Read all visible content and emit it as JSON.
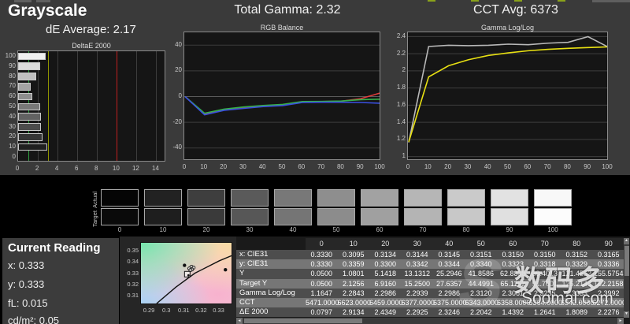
{
  "header": {
    "title": "Grayscale",
    "de_average": "dE Average: 2.17",
    "total_gamma": "Total Gamma: 2.32",
    "cct_avg": "CCT Avg: 6373"
  },
  "chart_data": [
    {
      "type": "bar",
      "title": "DeltaE 2000",
      "orientation": "horizontal",
      "categories": [
        "100",
        "90",
        "80",
        "70",
        "60",
        "50",
        "40",
        "30",
        "20",
        "10",
        "0"
      ],
      "values": [
        2.81,
        2.2276,
        1.8089,
        1.2641,
        1.4392,
        2.2042,
        2.3246,
        2.2925,
        2.4349,
        2.9134,
        0.0797
      ],
      "bar_colors": [
        "#f0f0f0",
        "#dcdcdc",
        "#c0c0c0",
        "#a4a4a4",
        "#8e8e8e",
        "#787878",
        "#626262",
        "#4c4c4c",
        "#363636",
        "#202020",
        "#0a0a0a"
      ],
      "xlim": [
        0,
        15
      ],
      "xticks": [
        0,
        2,
        4,
        6,
        8,
        10,
        12,
        14
      ],
      "reference_lines": [
        {
          "x": 1,
          "color": "#2f9e3f",
          "name": "green-limit"
        },
        {
          "x": 3,
          "color": "#8f9400",
          "name": "yellow-limit"
        },
        {
          "x": 10,
          "color": "#c02020",
          "name": "red-limit"
        }
      ],
      "grid": true,
      "legend": "none"
    },
    {
      "type": "line",
      "title": "RGB Balance",
      "x": [
        0,
        10,
        20,
        30,
        40,
        50,
        60,
        70,
        80,
        90,
        100
      ],
      "xticks": [
        0,
        10,
        20,
        30,
        40,
        50,
        60,
        70,
        80,
        90,
        100
      ],
      "ylim": [
        -50,
        50
      ],
      "yticks": [
        40,
        20,
        0,
        -20,
        -40
      ],
      "series": [
        {
          "name": "red",
          "color": "#e03c3c",
          "values": [
            0,
            -13.6,
            -10.2,
            -8.6,
            -7.2,
            -6.4,
            -4.2,
            -3.9,
            -3.6,
            -1.6,
            2.8
          ]
        },
        {
          "name": "green",
          "color": "#35b04a",
          "values": [
            0,
            -13.0,
            -9.8,
            -8.1,
            -6.9,
            -6.1,
            -3.9,
            -3.8,
            -3.5,
            -2.4,
            -2.0
          ]
        },
        {
          "name": "blue",
          "color": "#3a50e0",
          "values": [
            0,
            -14.2,
            -10.7,
            -9.2,
            -7.8,
            -7.0,
            -4.6,
            -4.4,
            -4.4,
            -4.6,
            -5.2
          ]
        }
      ],
      "grid": true,
      "legend": "none"
    },
    {
      "type": "line",
      "title": "Gamma Log/Log",
      "x": [
        0,
        10,
        20,
        30,
        40,
        50,
        60,
        70,
        80,
        90,
        100
      ],
      "xticks": [
        0,
        10,
        20,
        30,
        40,
        50,
        60,
        70,
        80,
        90,
        100
      ],
      "ylim": [
        0.95,
        2.45
      ],
      "yticks": [
        2.4,
        2.2,
        2,
        1.8,
        1.6,
        1.4,
        1.2,
        1
      ],
      "series": [
        {
          "name": "measured",
          "color": "#b8b8b8",
          "values": [
            1.1647,
            2.2843,
            2.2986,
            2.2939,
            2.2986,
            2.312,
            2.3061,
            2.3235,
            2.3333,
            2.3992,
            2.28
          ]
        },
        {
          "name": "target",
          "color": "#e8e012",
          "values": [
            1.17,
            1.93,
            2.06,
            2.13,
            2.18,
            2.21,
            2.235,
            2.252,
            2.263,
            2.272,
            2.28
          ]
        }
      ],
      "grid": true,
      "legend": "none"
    },
    {
      "type": "scatter",
      "title": "CIE chromaticity detail",
      "xlim": [
        0.285,
        0.337
      ],
      "ylim": [
        0.303,
        0.357
      ],
      "xticks": [
        0.29,
        0.3,
        0.31,
        0.32,
        0.33
      ],
      "yticks": [
        0.35,
        0.34,
        0.33,
        0.32,
        0.31
      ],
      "locus": [
        [
          0.294,
          0.303
        ],
        [
          0.305,
          0.3175
        ],
        [
          0.316,
          0.33
        ],
        [
          0.33,
          0.341
        ],
        [
          0.337,
          0.3455
        ]
      ],
      "points_filled": [
        [
          0.31,
          0.337
        ],
        [
          0.3335,
          0.333
        ]
      ],
      "points_open": [
        [
          0.314,
          0.3356
        ],
        [
          0.3152,
          0.3349
        ],
        [
          0.3128,
          0.3341
        ],
        [
          0.3143,
          0.3333
        ],
        [
          0.3134,
          0.3327
        ]
      ],
      "target_square": [
        0.3116,
        0.3291
      ]
    }
  ],
  "swatches": {
    "actual_label": "Actual",
    "target_label": "Target",
    "levels": [
      {
        "label": "0",
        "actual": "#050505",
        "target": "#0a0a0a"
      },
      {
        "label": "10",
        "actual": "#222222",
        "target": "#1e1e1e"
      },
      {
        "label": "20",
        "actual": "#3e3e3e",
        "target": "#3a3a3a"
      },
      {
        "label": "30",
        "actual": "#5a5a5a",
        "target": "#575757"
      },
      {
        "label": "40",
        "actual": "#787878",
        "target": "#757575"
      },
      {
        "label": "50",
        "actual": "#8e8e8e",
        "target": "#8c8c8c"
      },
      {
        "label": "60",
        "actual": "#a2a2a2",
        "target": "#a0a0a0"
      },
      {
        "label": "70",
        "actual": "#b6b6b6",
        "target": "#b4b4b4"
      },
      {
        "label": "80",
        "actual": "#cacaca",
        "target": "#c8c8c8"
      },
      {
        "label": "90",
        "actual": "#e2e2e2",
        "target": "#e0e0e0"
      },
      {
        "label": "100",
        "actual": "#f8f8f8",
        "target": "#fcfcfc"
      }
    ]
  },
  "current_reading": {
    "title": "Current Reading",
    "lines": [
      "x: 0.333",
      "y: 0.333",
      "fL: 0.015",
      "cd/m²: 0.05"
    ]
  },
  "table": {
    "columns": [
      "0",
      "10",
      "20",
      "30",
      "40",
      "50",
      "60",
      "70",
      "80",
      "90"
    ],
    "rows": [
      {
        "label": "x: CIE31",
        "values": [
          "0.3330",
          "0.3095",
          "0.3134",
          "0.3144",
          "0.3145",
          "0.3151",
          "0.3150",
          "0.3150",
          "0.3152",
          "0.3165"
        ]
      },
      {
        "label": "y: CIE31",
        "values": [
          "0.3330",
          "0.3359",
          "0.3300",
          "0.3342",
          "0.3344",
          "0.3340",
          "0.3323",
          "0.3318",
          "0.3329",
          "0.3336"
        ]
      },
      {
        "label": "Y",
        "values": [
          "0.0500",
          "1.0801",
          "5.1418",
          "13.1312",
          "25.2946",
          "41.8586",
          "62.8838",
          "89.4013",
          "121.4552",
          "155.5754"
        ]
      },
      {
        "label": "Target Y",
        "values": [
          "0.0500",
          "2.1256",
          "6.9160",
          "15.2500",
          "27.6357",
          "44.4991",
          "65.1152",
          "91.7601",
          "125.2145",
          "162.2158"
        ]
      },
      {
        "label": "Gamma Log/Log",
        "values": [
          "1.1647",
          "2.2843",
          "2.2986",
          "2.2939",
          "2.2986",
          "2.3120",
          "2.3061",
          "2.3235",
          "2.3333",
          "2.3992"
        ]
      },
      {
        "label": "CCT",
        "values": [
          "5471.0000",
          "6623.0000",
          "6459.0000",
          "6377.0000",
          "6375.0000",
          "6343.0000",
          "6358.0000",
          "6364.0000",
          "6342.0000",
          "6272.0000"
        ]
      },
      {
        "label": "ΔE 2000",
        "values": [
          "0.0797",
          "2.9134",
          "2.4349",
          "2.2925",
          "2.3246",
          "2.2042",
          "1.4392",
          "1.2641",
          "1.8089",
          "2.2276"
        ]
      }
    ],
    "row_colors_odd": "#4d4d4d",
    "row_colors_even": "#767676"
  },
  "watermark": {
    "ghost": "S",
    "cjk": "数码多",
    "site": "Soomal.com"
  },
  "colors": {
    "background": "#000000",
    "panel": "#3a3a3a",
    "plot_bg": "#151515",
    "accent_red": "#e03c3c",
    "accent_green": "#35b04a",
    "accent_blue": "#3a50e0",
    "accent_yellow": "#e8e012"
  }
}
